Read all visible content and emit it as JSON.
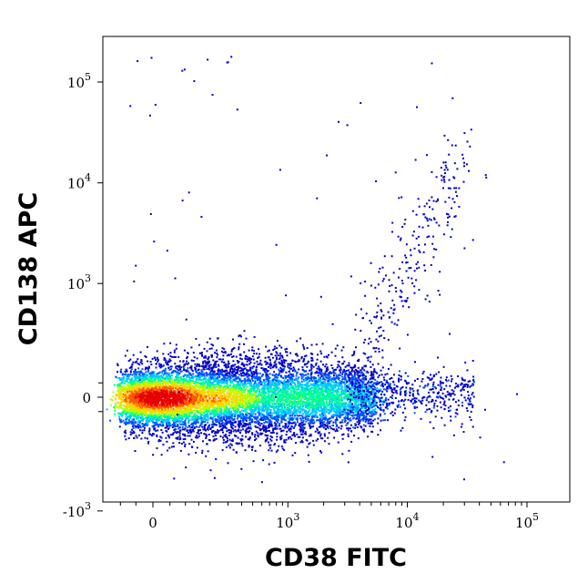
{
  "chart_data": {
    "type": "scatter",
    "title": "",
    "xlabel": "CD38 FITC",
    "ylabel": "CD138 APC",
    "xscale": "biexponential",
    "yscale": "biexponential",
    "x_ticks": [
      {
        "value": 0,
        "base": "0",
        "exp": ""
      },
      {
        "value": 1000,
        "base": "10",
        "exp": "3"
      },
      {
        "value": 10000,
        "base": "10",
        "exp": "4"
      },
      {
        "value": 100000,
        "base": "10",
        "exp": "5"
      }
    ],
    "y_ticks": [
      {
        "value": 100000,
        "base": "10",
        "exp": "5"
      },
      {
        "value": 10000,
        "base": "10",
        "exp": "4"
      },
      {
        "value": 1000,
        "base": "10",
        "exp": "3"
      },
      {
        "value": 0,
        "base": "0",
        "exp": ""
      },
      {
        "value": -1000,
        "base": "-10",
        "exp": "3"
      }
    ],
    "density_colormap": [
      "#0000c8",
      "#0050ff",
      "#00c8ff",
      "#00ff96",
      "#b4ff00",
      "#ffd200",
      "#ff5a00",
      "#e60000"
    ],
    "populations": [
      {
        "x_range": [
          -150,
          6000
        ],
        "y_center": 0,
        "density": "high",
        "peak_x": 40,
        "peak_y": 0
      },
      {
        "x_range": [
          5000,
          60000
        ],
        "y_range": [
          200,
          50000
        ],
        "density": "low"
      }
    ],
    "grid": false,
    "legend": "none"
  }
}
